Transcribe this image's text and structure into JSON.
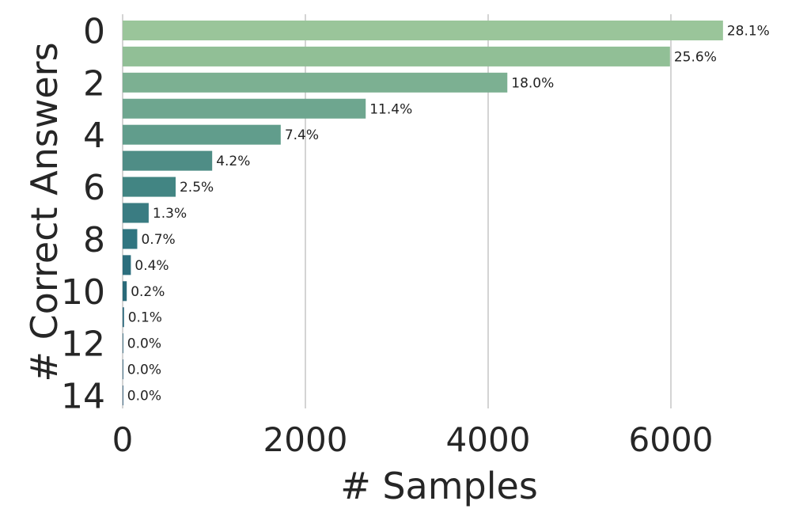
{
  "chart_data": {
    "type": "bar",
    "orientation": "horizontal",
    "xlabel": "# Samples",
    "ylabel": "# Correct Answers",
    "xlim": [
      0,
      7000
    ],
    "xticks": [
      0,
      2000,
      4000,
      6000
    ],
    "yticks": [
      0,
      2,
      4,
      6,
      8,
      10,
      12,
      14
    ],
    "grid": true,
    "categories": [
      "0",
      "1",
      "2",
      "3",
      "4",
      "5",
      "6",
      "7",
      "8",
      "9",
      "10",
      "11",
      "12",
      "13",
      "14"
    ],
    "values": [
      6570,
      5990,
      4210,
      2660,
      1730,
      980,
      580,
      285,
      160,
      90,
      45,
      15,
      4,
      2,
      1
    ],
    "labels": [
      "28.1%",
      "25.6%",
      "18.0%",
      "11.4%",
      "7.4%",
      "4.2%",
      "2.5%",
      "1.3%",
      "0.7%",
      "0.4%",
      "0.2%",
      "0.1%",
      "0.0%",
      "0.0%",
      "0.0%"
    ],
    "colors": [
      "#9ac59a",
      "#91bf96",
      "#7cb092",
      "#6ea68f",
      "#619d8c",
      "#4f8d86",
      "#428583",
      "#3a7c82",
      "#307580",
      "#2c6e7d",
      "#2a6a79",
      "#28657a",
      "#27607a",
      "#265c79",
      "#255878"
    ]
  }
}
